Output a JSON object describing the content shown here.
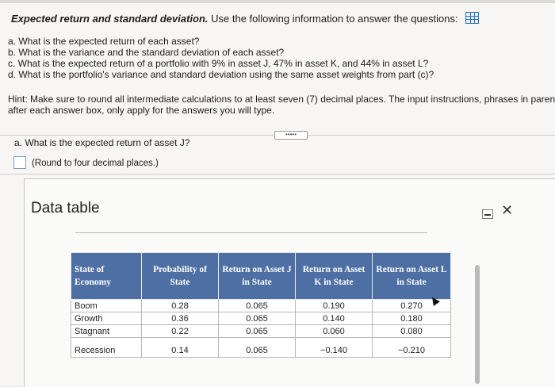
{
  "question": {
    "title_bold": "Expected return and standard deviation.",
    "title_rest": "Use the following information to answer the questions:",
    "items": [
      "a. What is the expected return of each asset?",
      "b. What is the variance and the standard deviation of each asset?",
      "c. What is the expected return of a portfolio with 9% in asset J, 47% in asset K, and 44% in asset L?",
      "d. What is the portfolio's variance and standard deviation using the same asset weights from part (c)?"
    ],
    "hint_line1": "Hint: Make sure to round all intermediate calculations to at least seven (7) decimal places. The input instructions, phrases in parenthes",
    "hint_line2": "after each answer box, only apply for the answers you will type.",
    "more_label": "•••••"
  },
  "part_a": {
    "question": "a. What is the expected return of asset J?",
    "answer_value": "",
    "round_note": "(Round to four decimal places.)"
  },
  "modal": {
    "title": "Data table",
    "minimize_label": "",
    "close_label": "✕"
  },
  "table": {
    "headers": [
      "State of Economy",
      "Probability of State",
      "Return on Asset J in State",
      "Return on Asset K in State",
      "Return on Asset L in State"
    ],
    "rows": [
      [
        "Boom",
        "0.28",
        "0.065",
        "0.190",
        "0.270"
      ],
      [
        "Growth",
        "0.36",
        "0.065",
        "0.140",
        "0.180"
      ],
      [
        "Stagnant",
        "0.22",
        "0.065",
        "0.060",
        "0.080"
      ],
      [
        "Recession",
        "0.14",
        "0.065",
        "−0.140",
        "−0.210"
      ]
    ]
  }
}
